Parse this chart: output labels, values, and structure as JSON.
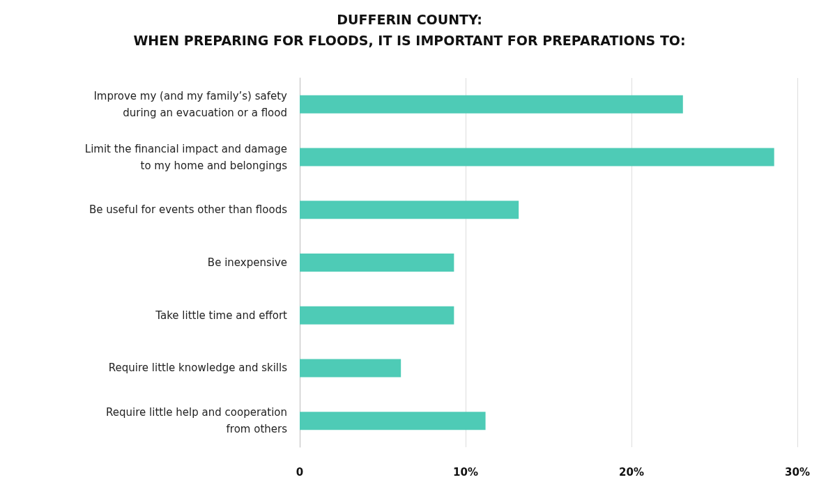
{
  "chart_data": {
    "type": "bar",
    "orientation": "horizontal",
    "title": "DUFFERIN COUNTY:\nWHEN PREPARING FOR FLOODS, IT IS IMPORTANT FOR PREPARATIONS TO:",
    "categories": [
      "Improve my (and my family’s) safety\nduring an evacuation or a flood",
      "Limit the financial impact and damage\nto my home and belongings",
      "Be useful for events other than floods",
      "Be inexpensive",
      "Take little time and effort",
      "Require little knowledge and skills",
      "Require little help and cooperation\nfrom others"
    ],
    "values": [
      23.1,
      28.6,
      13.2,
      9.3,
      9.3,
      6.1,
      11.2
    ],
    "color": "#4ecbb6",
    "xlim": [
      0,
      30
    ],
    "xticks": [
      0,
      {
        "value": 10,
        "label": "10%"
      },
      {
        "value": 20,
        "label": "20%"
      },
      {
        "value": 30,
        "label": "30%"
      }
    ],
    "grid": "x"
  }
}
